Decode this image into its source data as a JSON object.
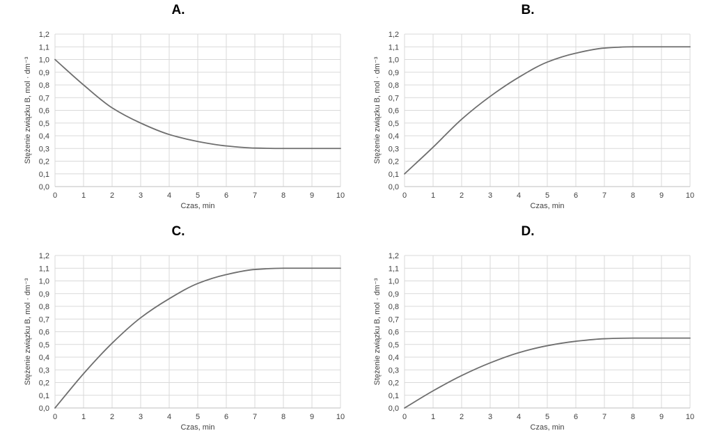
{
  "chart_data": [
    {
      "type": "line",
      "title": "A.",
      "xlabel": "Czas, min",
      "ylabel": "Stężenie związku B, mol · dm⁻³",
      "xlim": [
        0,
        10
      ],
      "ylim": [
        0,
        1.2
      ],
      "grid": true,
      "x_ticks": [
        "0",
        "1",
        "2",
        "3",
        "4",
        "5",
        "6",
        "7",
        "8",
        "9",
        "10"
      ],
      "y_ticks": [
        "0,0",
        "0,1",
        "0,2",
        "0,3",
        "0,4",
        "0,5",
        "0,6",
        "0,7",
        "0,8",
        "0,9",
        "1,0",
        "1,1",
        "1,2"
      ],
      "color": "#6e6e6e",
      "series": [
        {
          "x": [
            0,
            1,
            2,
            3,
            4,
            5,
            6,
            7,
            8,
            9,
            10
          ],
          "values": [
            1.0,
            0.8,
            0.62,
            0.5,
            0.41,
            0.355,
            0.32,
            0.303,
            0.3,
            0.3,
            0.3
          ]
        }
      ]
    },
    {
      "type": "line",
      "title": "B.",
      "xlabel": "Czas, min",
      "ylabel": "Stężenie związku B, mol · dm⁻³",
      "xlim": [
        0,
        10
      ],
      "ylim": [
        0,
        1.2
      ],
      "grid": true,
      "x_ticks": [
        "0",
        "1",
        "2",
        "3",
        "4",
        "5",
        "6",
        "7",
        "8",
        "9",
        "10"
      ],
      "y_ticks": [
        "0,0",
        "0,1",
        "0,2",
        "0,3",
        "0,4",
        "0,5",
        "0,6",
        "0,7",
        "0,8",
        "0,9",
        "1,0",
        "1,1",
        "1,2"
      ],
      "color": "#6e6e6e",
      "series": [
        {
          "x": [
            0,
            1,
            2,
            3,
            4,
            5,
            6,
            7,
            8,
            9,
            10
          ],
          "values": [
            0.1,
            0.31,
            0.53,
            0.71,
            0.86,
            0.98,
            1.05,
            1.09,
            1.1,
            1.1,
            1.1
          ]
        }
      ]
    },
    {
      "type": "line",
      "title": "C.",
      "xlabel": "Czas, min",
      "ylabel": "Stężenie związku B, mol · dm⁻³",
      "xlim": [
        0,
        10
      ],
      "ylim": [
        0,
        1.2
      ],
      "grid": true,
      "x_ticks": [
        "0",
        "1",
        "2",
        "3",
        "4",
        "5",
        "6",
        "7",
        "8",
        "9",
        "10"
      ],
      "y_ticks": [
        "0,0",
        "0,1",
        "0,2",
        "0,3",
        "0,4",
        "0,5",
        "0,6",
        "0,7",
        "0,8",
        "0,9",
        "1,0",
        "1,1",
        "1,2"
      ],
      "color": "#6e6e6e",
      "series": [
        {
          "x": [
            0,
            1,
            2,
            3,
            4,
            5,
            6,
            7,
            8,
            9,
            10
          ],
          "values": [
            0.0,
            0.27,
            0.51,
            0.71,
            0.86,
            0.98,
            1.05,
            1.09,
            1.1,
            1.1,
            1.1
          ]
        }
      ]
    },
    {
      "type": "line",
      "title": "D.",
      "xlabel": "Czas, min",
      "ylabel": "Stężenie związku B, mol · dm⁻³",
      "xlim": [
        0,
        10
      ],
      "ylim": [
        0,
        1.2
      ],
      "grid": true,
      "x_ticks": [
        "0",
        "1",
        "2",
        "3",
        "4",
        "5",
        "6",
        "7",
        "8",
        "9",
        "10"
      ],
      "y_ticks": [
        "0,0",
        "0,1",
        "0,2",
        "0,3",
        "0,4",
        "0,5",
        "0,6",
        "0,7",
        "0,8",
        "0,9",
        "1,0",
        "1,1",
        "1,2"
      ],
      "color": "#6e6e6e",
      "series": [
        {
          "x": [
            0,
            1,
            2,
            3,
            4,
            5,
            6,
            7,
            8,
            9,
            10
          ],
          "values": [
            0.0,
            0.135,
            0.255,
            0.355,
            0.435,
            0.49,
            0.525,
            0.545,
            0.55,
            0.55,
            0.55
          ]
        }
      ]
    }
  ]
}
